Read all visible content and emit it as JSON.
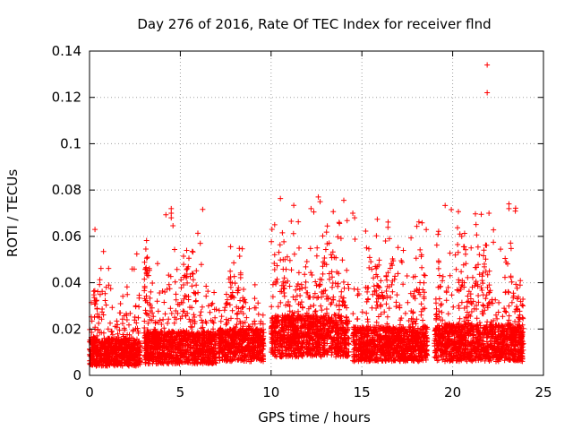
{
  "chart_data": {
    "type": "scatter",
    "title": "Day 276 of 2016, Rate Of TEC Index for receiver flnd",
    "xlabel": "GPS time / hours",
    "ylabel": "ROTI / TECUs",
    "xlim": [
      0,
      25
    ],
    "ylim": [
      0,
      0.14
    ],
    "grid": true,
    "marker": "+",
    "color": "#ff0000",
    "x_ticks": [
      0,
      5,
      10,
      15,
      20,
      25
    ],
    "x_tick_labels": [
      "0",
      "5",
      "10",
      "15",
      "20",
      "25"
    ],
    "y_ticks": [
      0,
      0.02,
      0.04,
      0.06,
      0.08,
      0.1,
      0.12,
      0.14
    ],
    "y_tick_labels": [
      "0",
      "0.02",
      "0.04",
      "0.06",
      "0.08",
      "0.1",
      "0.12",
      "0.14"
    ],
    "series": [
      {
        "name": "ROTI",
        "segments": [
          {
            "start": 0.0,
            "end": 2.8,
            "base": 0.01,
            "spread": 0.012,
            "peak": 0.054
          },
          {
            "start": 3.0,
            "end": 7.0,
            "base": 0.011,
            "spread": 0.014,
            "peak": 0.072
          },
          {
            "start": 7.1,
            "end": 9.6,
            "base": 0.012,
            "spread": 0.014,
            "peak": 0.058
          },
          {
            "start": 10.0,
            "end": 14.3,
            "base": 0.014,
            "spread": 0.018,
            "peak": 0.077
          },
          {
            "start": 14.5,
            "end": 18.6,
            "base": 0.012,
            "spread": 0.015,
            "peak": 0.07
          },
          {
            "start": 19.0,
            "end": 23.9,
            "base": 0.012,
            "spread": 0.016,
            "peak": 0.074
          }
        ],
        "highlights": [
          {
            "x": 0.3,
            "y": 0.063
          },
          {
            "x": 4.5,
            "y": 0.072
          },
          {
            "x": 4.5,
            "y": 0.07
          },
          {
            "x": 4.5,
            "y": 0.068
          },
          {
            "x": 6.1,
            "y": 0.057
          },
          {
            "x": 12.6,
            "y": 0.077
          },
          {
            "x": 12.7,
            "y": 0.075
          },
          {
            "x": 12.2,
            "y": 0.072
          },
          {
            "x": 14.5,
            "y": 0.07
          },
          {
            "x": 14.6,
            "y": 0.068
          },
          {
            "x": 16.3,
            "y": 0.058
          },
          {
            "x": 20.4,
            "y": 0.061
          },
          {
            "x": 20.5,
            "y": 0.06
          },
          {
            "x": 21.9,
            "y": 0.134
          },
          {
            "x": 21.9,
            "y": 0.122
          },
          {
            "x": 22.0,
            "y": 0.07
          },
          {
            "x": 23.1,
            "y": 0.074
          },
          {
            "x": 23.1,
            "y": 0.072
          }
        ]
      }
    ]
  }
}
